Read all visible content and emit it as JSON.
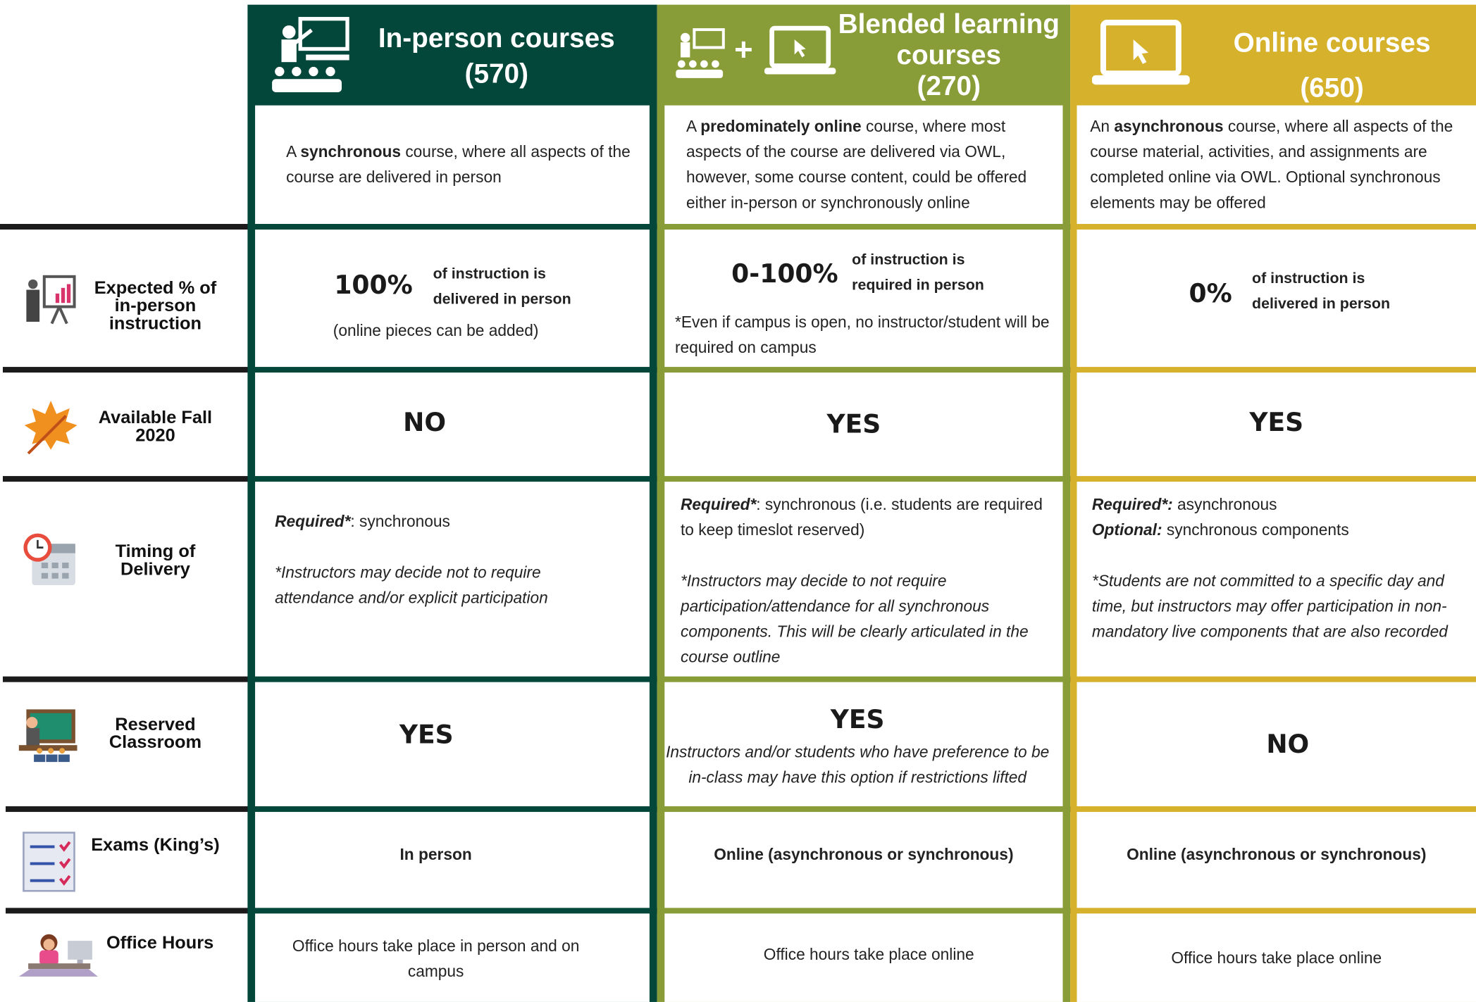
{
  "columns": [
    {
      "title": "In-person courses",
      "count": "(570)",
      "description": [
        "A ",
        "synchronous",
        " course, where all aspects of the course are delivered in person"
      ]
    },
    {
      "title": "Blended learning courses",
      "count": "(270)",
      "icon_joiner": "+",
      "description": [
        "A ",
        "predominately online",
        " course, where most aspects of the course are delivered via OWL, however, some course content, could be offered either in-person or synchronously online"
      ]
    },
    {
      "title": "Online courses",
      "count": "(650)",
      "description": [
        "An ",
        "asynchronous",
        " course, where all aspects of the course material, activities, and assignments are completed online via OWL. Optional synchronous elements may be offered"
      ]
    }
  ],
  "rows": [
    {
      "label": "Expected % of in-person instruction",
      "cells": [
        {
          "big": "100%",
          "text": "of instruction is delivered in person",
          "note": "(online pieces can be added)"
        },
        {
          "big": "0-100%",
          "text": "of instruction is required in person",
          "note": "*Even if campus is open, no instructor/student will be required on campus"
        },
        {
          "big": "0%",
          "text": "of instruction is delivered in person"
        }
      ]
    },
    {
      "label": "Available Fall 2020",
      "cells": [
        "NO",
        "YES",
        "YES"
      ]
    },
    {
      "label": "Timing of Delivery",
      "cells": [
        {
          "required_label": "Required*",
          "required": ": synchronous",
          "note": "*Instructors may decide not to require attendance and/or explicit participation"
        },
        {
          "required_label": "Required*",
          "required": ": synchronous (i.e. students are required to keep timeslot reserved)",
          "note": "*Instructors may decide to not require participation/attendance for all synchronous components.  This will be clearly articulated in the course outline"
        },
        {
          "required_label": "Required*:",
          "required": " asynchronous",
          "optional_label": "Optional:",
          "optional": " synchronous components",
          "note": "*Students are not committed to a specific day and time, but instructors may offer participation in non-mandatory live components that are also recorded"
        }
      ]
    },
    {
      "label": "Reserved Classroom",
      "cells": [
        {
          "answer": "YES"
        },
        {
          "answer": "YES",
          "note": "Instructors and/or students who have preference to be in-class may have this option if restrictions lifted"
        },
        {
          "answer": "NO"
        }
      ]
    },
    {
      "label": "Exams (King’s)",
      "cells": [
        "In person",
        "Online (asynchronous or synchronous)",
        "Online (asynchronous or synchronous)"
      ]
    },
    {
      "label": "Office Hours",
      "cells": [
        "Office hours take place in person and on campus",
        "Office hours take place online",
        "Office hours take place online"
      ]
    }
  ]
}
